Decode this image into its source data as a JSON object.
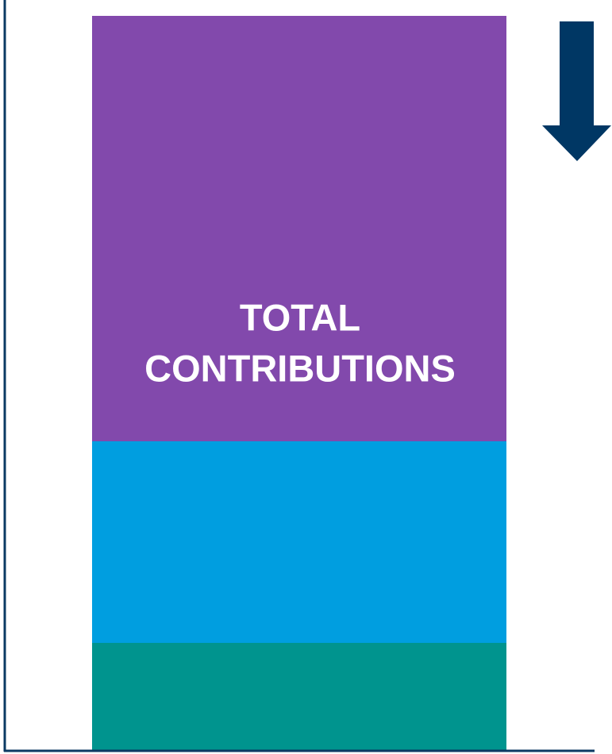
{
  "bar": {
    "label_lines": [
      "TOTAL",
      "CONTRIBUTIONS"
    ]
  }
}
